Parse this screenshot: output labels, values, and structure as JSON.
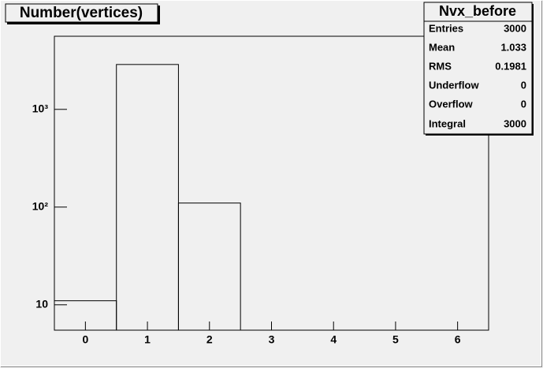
{
  "chart_data": {
    "type": "histogram",
    "title": "Number(vertices)",
    "bins": [
      -0.5,
      0.5,
      1.5,
      2.5,
      3.5,
      4.5,
      5.5,
      6.5
    ],
    "values": [
      11,
      2879,
      110,
      0,
      0,
      0,
      0
    ],
    "color": "#000000",
    "log_y": true,
    "xlim": [
      -0.5,
      6.5
    ],
    "xticks": [
      0,
      1,
      2,
      3,
      4,
      5,
      6
    ],
    "ylim": [
      5.5,
      5600
    ],
    "yticks": [
      10,
      {
        "value": 100,
        "label": "10²"
      },
      {
        "value": 1000,
        "label": "10³"
      }
    ],
    "stats": {
      "title": "Nvx_before",
      "rows": [
        {
          "label": "Entries",
          "value": "3000"
        },
        {
          "label": "Mean",
          "value": "1.033"
        },
        {
          "label": "RMS",
          "value": "0.1981"
        },
        {
          "label": "Underflow",
          "value": "0"
        },
        {
          "label": "Overflow",
          "value": "0"
        },
        {
          "label": "Integral",
          "value": "3000"
        }
      ]
    }
  }
}
